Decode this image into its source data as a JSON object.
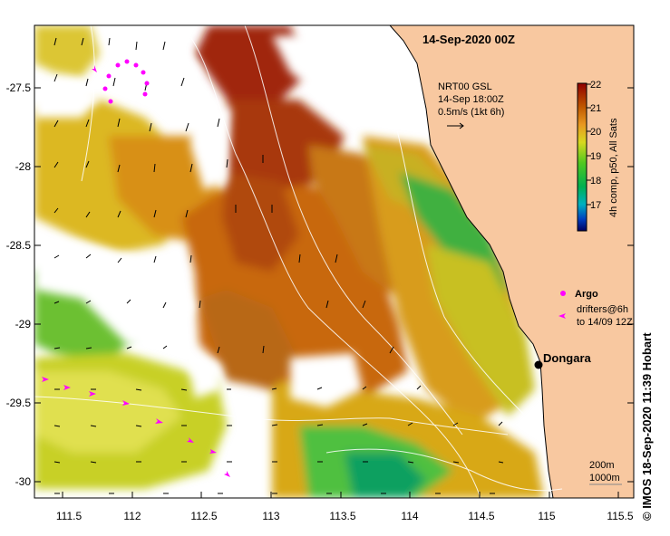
{
  "map": {
    "title": "14-Sep-2020 00Z",
    "current_info": {
      "line1": "NRT00 GSL",
      "line2": "14-Sep 18:00Z",
      "line3": "0.5m/s (1kt 6h)"
    },
    "x_ticks": [
      "111.5",
      "112",
      "112.5",
      "113",
      "113.5",
      "114",
      "114.5",
      "115",
      "115.5"
    ],
    "y_ticks": [
      "-27.5",
      "-28",
      "-28.5",
      "-29",
      "-29.5",
      "-30"
    ],
    "location_label": "Dongara",
    "legend": {
      "argo_label": "Argo",
      "drifters_line1": "drifters@6h",
      "drifters_line2": "to 14/09 12Z"
    },
    "depth_labels": [
      "200m",
      "1000m"
    ],
    "colorbar": {
      "label": "4h comp, p50, All Sats",
      "ticks": [
        "22",
        "21",
        "20",
        "19",
        "18",
        "17"
      ],
      "range": [
        16.5,
        22
      ]
    },
    "credit": "© IMOS 18-Sep-2020 11:39 Hobart",
    "colors": {
      "land": "#f8c8a0",
      "argo": "#ff00ff",
      "drifter": "#ff00ff"
    },
    "icons": {
      "location": "black-dot-icon",
      "argo": "magenta-star-icon",
      "drifter": "magenta-arrowhead-icon"
    }
  }
}
